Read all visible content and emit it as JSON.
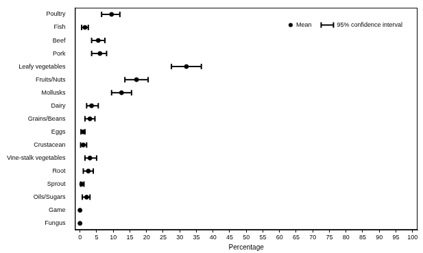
{
  "chart_data": {
    "type": "scatter",
    "orientation": "horizontal",
    "categories": [
      "Poultry",
      "Fish",
      "Beef",
      "Pork",
      "Leafy vegetables",
      "Fruits/Nuts",
      "Mollusks",
      "Dairy",
      "Grains/Beans",
      "Eggs",
      "Crustacean",
      "Vine-stalk vegetables",
      "Root",
      "Sprout",
      "Oils/Sugars",
      "Game",
      "Fungus"
    ],
    "series": [
      {
        "name": "Mean",
        "color": "#000000",
        "marker": "circle",
        "values": [
          9.5,
          1.5,
          5.5,
          6,
          32,
          17,
          12.5,
          3.5,
          3,
          1,
          1,
          3,
          2.5,
          0.5,
          2,
          0,
          0
        ]
      }
    ],
    "error_bars": {
      "name": "95% confidence interval",
      "color": "#000000",
      "lower": [
        6.5,
        0.5,
        3.5,
        3.5,
        27.5,
        13.5,
        9.5,
        2,
        1.5,
        0.3,
        0.2,
        1.5,
        1,
        0.2,
        0.7,
        0,
        0
      ],
      "upper": [
        12,
        2.5,
        7.5,
        8,
        36.5,
        20.5,
        15.5,
        5.5,
        4.5,
        1.5,
        2,
        5,
        4,
        1.2,
        3,
        0,
        0
      ]
    },
    "x_label": "Percentage",
    "xlim": [
      -1.5,
      101.5
    ],
    "xticks": [
      0,
      5,
      10,
      15,
      20,
      25,
      30,
      35,
      40,
      45,
      50,
      55,
      60,
      65,
      70,
      75,
      80,
      85,
      90,
      95,
      100
    ],
    "grid": false,
    "legend": "upper right"
  }
}
